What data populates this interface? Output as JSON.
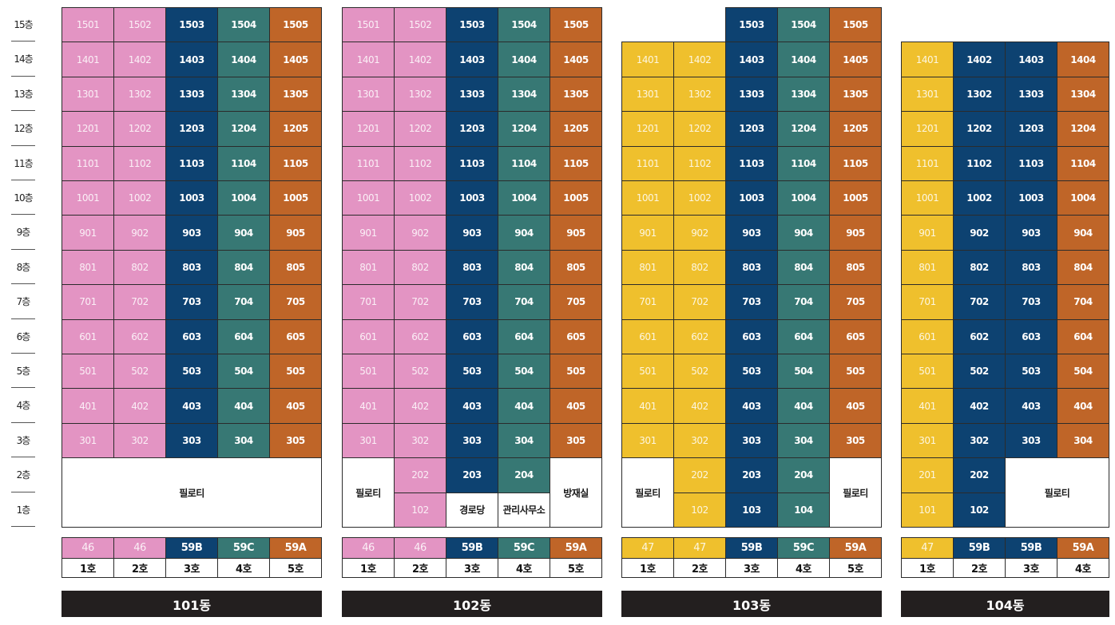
{
  "colors": {
    "46": "#e394c3",
    "47": "#efc02d",
    "59A": "#bf6528",
    "59B": "#0d4271",
    "59C": "#377874",
    "service": "#ffffff"
  },
  "floors": [
    "15층",
    "14층",
    "13층",
    "12층",
    "11층",
    "10층",
    "9층",
    "8층",
    "7층",
    "6층",
    "5층",
    "4층",
    "3층",
    "2층",
    "1층"
  ],
  "buildings": [
    {
      "name": "101동",
      "types": [
        "46",
        "46",
        "59B",
        "59C",
        "59A"
      ],
      "ho": [
        "1호",
        "2호",
        "3호",
        "4호",
        "5호"
      ],
      "columns": [
        {
          "units": [
            "1501",
            "1401",
            "1301",
            "1201",
            "1101",
            "1001",
            "901",
            "801",
            "701",
            "601",
            "501",
            "401",
            "301"
          ]
        },
        {
          "units": [
            "1502",
            "1402",
            "1302",
            "1202",
            "1102",
            "1002",
            "902",
            "802",
            "702",
            "602",
            "502",
            "402",
            "302"
          ]
        },
        {
          "units": [
            "1503",
            "1403",
            "1303",
            "1203",
            "1103",
            "1003",
            "903",
            "803",
            "703",
            "603",
            "503",
            "403",
            "303"
          ]
        },
        {
          "units": [
            "1504",
            "1404",
            "1304",
            "1204",
            "1104",
            "1004",
            "904",
            "804",
            "704",
            "604",
            "504",
            "404",
            "304"
          ]
        },
        {
          "units": [
            "1505",
            "1405",
            "1305",
            "1205",
            "1105",
            "1005",
            "905",
            "805",
            "705",
            "605",
            "505",
            "405",
            "305"
          ]
        }
      ],
      "low": [
        {
          "label": "필로티",
          "service": true
        }
      ]
    },
    {
      "name": "102동",
      "types": [
        "46",
        "46",
        "59B",
        "59C",
        "59A"
      ],
      "ho": [
        "1호",
        "2호",
        "3호",
        "4호",
        "5호"
      ],
      "columns": [
        {
          "units": [
            "1501",
            "1401",
            "1301",
            "1201",
            "1101",
            "1001",
            "901",
            "801",
            "701",
            "601",
            "501",
            "401",
            "301"
          ]
        },
        {
          "units": [
            "1502",
            "1402",
            "1302",
            "1202",
            "1102",
            "1002",
            "902",
            "802",
            "702",
            "602",
            "502",
            "402",
            "302"
          ]
        },
        {
          "units": [
            "1503",
            "1403",
            "1303",
            "1203",
            "1103",
            "1003",
            "903",
            "803",
            "703",
            "603",
            "503",
            "403",
            "303"
          ]
        },
        {
          "units": [
            "1504",
            "1404",
            "1304",
            "1204",
            "1104",
            "1004",
            "904",
            "804",
            "704",
            "604",
            "504",
            "404",
            "304"
          ]
        },
        {
          "units": [
            "1505",
            "1405",
            "1305",
            "1205",
            "1105",
            "1005",
            "905",
            "805",
            "705",
            "605",
            "505",
            "405",
            "305"
          ]
        }
      ],
      "low": [
        {
          "label": "필로티",
          "service": true
        },
        {
          "label": "202",
          "type": "46"
        },
        {
          "label": "203",
          "type": "59B"
        },
        {
          "label": "204",
          "type": "59C"
        },
        {
          "label": "방재실",
          "service": true
        },
        {
          "label": "102",
          "type": "46"
        },
        {
          "label": "경로당",
          "service": true
        },
        {
          "label": "관리사무소",
          "service": true
        }
      ]
    },
    {
      "name": "103동",
      "types": [
        "47",
        "47",
        "59B",
        "59C",
        "59A"
      ],
      "ho": [
        "1호",
        "2호",
        "3호",
        "4호",
        "5호"
      ],
      "columns": [
        {
          "units": [
            "",
            "1401",
            "1301",
            "1201",
            "1101",
            "1001",
            "901",
            "801",
            "701",
            "601",
            "501",
            "401",
            "301"
          ]
        },
        {
          "units": [
            "",
            "1402",
            "1302",
            "1202",
            "1102",
            "1002",
            "902",
            "802",
            "702",
            "602",
            "502",
            "402",
            "302"
          ]
        },
        {
          "units": [
            "1503",
            "1403",
            "1303",
            "1203",
            "1103",
            "1003",
            "903",
            "803",
            "703",
            "603",
            "503",
            "403",
            "303"
          ]
        },
        {
          "units": [
            "1504",
            "1404",
            "1304",
            "1204",
            "1104",
            "1004",
            "904",
            "804",
            "704",
            "604",
            "504",
            "404",
            "304"
          ]
        },
        {
          "units": [
            "1505",
            "1405",
            "1305",
            "1205",
            "1105",
            "1005",
            "905",
            "805",
            "705",
            "605",
            "505",
            "405",
            "305"
          ]
        }
      ],
      "low": [
        {
          "label": "필로티",
          "service": true
        },
        {
          "label": "202",
          "type": "47"
        },
        {
          "label": "203",
          "type": "59B"
        },
        {
          "label": "204",
          "type": "59C"
        },
        {
          "label": "필로티",
          "service": true
        },
        {
          "label": "102",
          "type": "47"
        },
        {
          "label": "103",
          "type": "59B"
        },
        {
          "label": "104",
          "type": "59C"
        }
      ]
    },
    {
      "name": "104동",
      "types": [
        "47",
        "59B",
        "59B",
        "59A"
      ],
      "ho": [
        "1호",
        "2호",
        "3호",
        "4호"
      ],
      "columns": [
        {
          "units": [
            "",
            "1401",
            "1301",
            "1201",
            "1101",
            "1001",
            "901",
            "801",
            "701",
            "601",
            "501",
            "401",
            "301"
          ]
        },
        {
          "units": [
            "",
            "1402",
            "1302",
            "1202",
            "1102",
            "1002",
            "902",
            "802",
            "702",
            "602",
            "502",
            "402",
            "302"
          ]
        },
        {
          "units": [
            "",
            "1403",
            "1303",
            "1203",
            "1103",
            "1003",
            "903",
            "803",
            "703",
            "603",
            "503",
            "403",
            "303"
          ]
        },
        {
          "units": [
            "",
            "1404",
            "1304",
            "1204",
            "1104",
            "1004",
            "904",
            "804",
            "704",
            "604",
            "504",
            "404",
            "304"
          ]
        }
      ],
      "low": [
        {
          "label": "201",
          "type": "47"
        },
        {
          "label": "202",
          "type": "59B"
        },
        {
          "label": "필로티",
          "service": true
        },
        {
          "label": "101",
          "type": "47"
        },
        {
          "label": "102",
          "type": "59B"
        }
      ]
    }
  ]
}
